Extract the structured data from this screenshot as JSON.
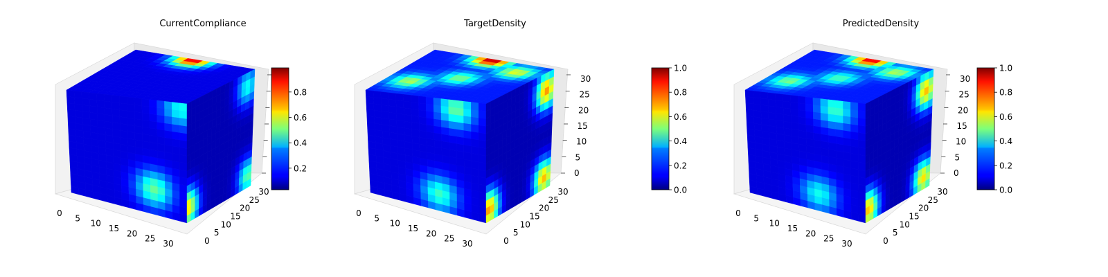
{
  "chart_data": [
    {
      "type": "heatmap",
      "title": "CurrentCompliance",
      "plot_kind": "3d-voxel",
      "xticks": [
        "0",
        "5",
        "10",
        "15",
        "20",
        "25",
        "30"
      ],
      "yticks": [
        "0",
        "5",
        "10",
        "15",
        "20",
        "25",
        "30"
      ],
      "zticks": [],
      "colorbar": {
        "cmap": "jet",
        "range": [
          0.03,
          0.99
        ],
        "ticks": [
          "0.2",
          "0.4",
          "0.6",
          "0.8"
        ],
        "tick_values": [
          0.2,
          0.4,
          0.6,
          0.8
        ]
      },
      "hotspots": [
        {
          "face": "top",
          "u": 0.5,
          "v": 0.98,
          "value": 0.9
        },
        {
          "face": "right",
          "u": 0.02,
          "v": 0.12,
          "value": 0.85
        },
        {
          "face": "front",
          "u": 0.72,
          "v": 0.22,
          "value": 0.55
        },
        {
          "face": "right",
          "u": 0.95,
          "v": 0.1,
          "value": 0.6
        },
        {
          "face": "right",
          "u": 0.9,
          "v": 0.88,
          "value": 0.5
        },
        {
          "face": "front",
          "u": 0.95,
          "v": 0.95,
          "value": 0.45
        }
      ]
    },
    {
      "type": "heatmap",
      "title": "TargetDensity",
      "plot_kind": "3d-voxel",
      "xticks": [
        "0",
        "5",
        "10",
        "15",
        "20",
        "25",
        "30"
      ],
      "yticks": [
        "0",
        "5",
        "10",
        "15",
        "20",
        "25",
        "30"
      ],
      "zticks": [
        "0",
        "5",
        "10",
        "15",
        "20",
        "25",
        "30"
      ],
      "colorbar": {
        "cmap": "jet",
        "range": [
          0.0,
          1.0
        ],
        "ticks": [
          "0.0",
          "0.2",
          "0.4",
          "0.6",
          "0.8",
          "1.0"
        ],
        "tick_values": [
          0.0,
          0.2,
          0.4,
          0.6,
          0.8,
          1.0
        ]
      },
      "hotspots": [
        {
          "face": "top",
          "u": 0.5,
          "v": 0.5,
          "value": 0.5
        },
        {
          "face": "top",
          "u": 0.2,
          "v": 0.3,
          "value": 0.55
        },
        {
          "face": "top",
          "u": 0.8,
          "v": 0.8,
          "value": 0.6
        },
        {
          "face": "top",
          "u": 0.5,
          "v": 0.98,
          "value": 0.95
        },
        {
          "face": "right",
          "u": 0.05,
          "v": 0.1,
          "value": 0.95
        },
        {
          "face": "right",
          "u": 0.9,
          "v": 0.1,
          "value": 0.9
        },
        {
          "face": "right",
          "u": 0.9,
          "v": 0.85,
          "value": 0.95
        },
        {
          "face": "front",
          "u": 0.6,
          "v": 0.15,
          "value": 0.5
        },
        {
          "face": "front",
          "u": 0.75,
          "v": 0.92,
          "value": 0.55
        }
      ]
    },
    {
      "type": "heatmap",
      "title": "PredictedDensity",
      "plot_kind": "3d-voxel",
      "xticks": [
        "0",
        "5",
        "10",
        "15",
        "20",
        "25",
        "30"
      ],
      "yticks": [
        "0",
        "5",
        "10",
        "15",
        "20",
        "25",
        "30"
      ],
      "zticks": [
        "0",
        "5",
        "10",
        "15",
        "20",
        "25",
        "30"
      ],
      "colorbar": {
        "cmap": "jet",
        "range": [
          0.0,
          1.0
        ],
        "ticks": [
          "0.0",
          "0.2",
          "0.4",
          "0.6",
          "0.8",
          "1.0"
        ],
        "tick_values": [
          0.0,
          0.2,
          0.4,
          0.6,
          0.8,
          1.0
        ]
      },
      "hotspots": [
        {
          "face": "top",
          "u": 0.5,
          "v": 0.5,
          "value": 0.45
        },
        {
          "face": "top",
          "u": 0.2,
          "v": 0.3,
          "value": 0.5
        },
        {
          "face": "top",
          "u": 0.8,
          "v": 0.8,
          "value": 0.55
        },
        {
          "face": "top",
          "u": 0.5,
          "v": 0.98,
          "value": 0.9
        },
        {
          "face": "right",
          "u": 0.05,
          "v": 0.1,
          "value": 0.9
        },
        {
          "face": "right",
          "u": 0.9,
          "v": 0.1,
          "value": 0.85
        },
        {
          "face": "right",
          "u": 0.9,
          "v": 0.85,
          "value": 0.9
        },
        {
          "face": "front",
          "u": 0.6,
          "v": 0.15,
          "value": 0.45
        },
        {
          "face": "front",
          "u": 0.75,
          "v": 0.92,
          "value": 0.5
        }
      ]
    }
  ]
}
